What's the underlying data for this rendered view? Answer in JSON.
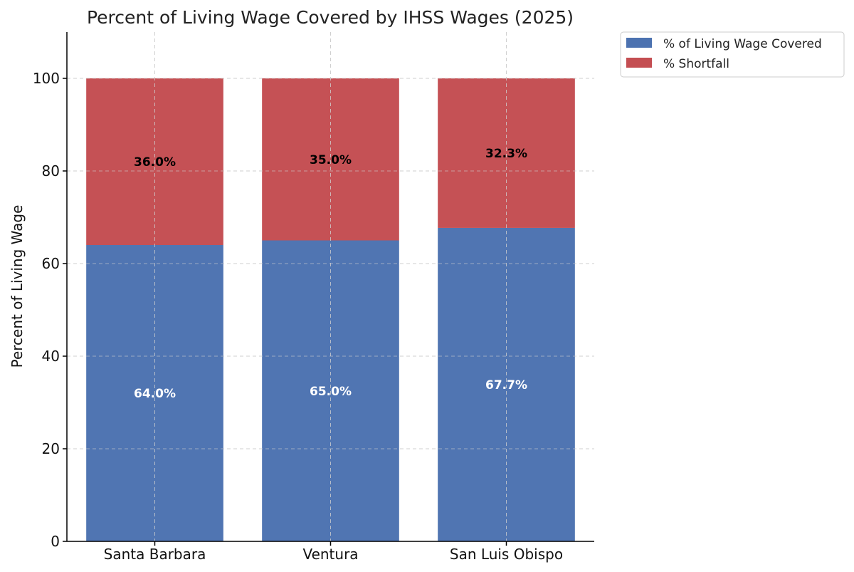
{
  "chart_data": {
    "type": "bar",
    "stacked": true,
    "title": "Percent of Living Wage Covered by IHSS Wages (2025)",
    "xlabel": "",
    "ylabel": "Percent of Living Wage",
    "ylim": [
      0,
      110
    ],
    "yticks": [
      0,
      20,
      40,
      60,
      80,
      100
    ],
    "grid": true,
    "legend_position": "outside-top-right",
    "categories": [
      "Santa Barbara",
      "Ventura",
      "San Luis Obispo"
    ],
    "series": [
      {
        "name": "% of Living Wage Covered",
        "color": "#4c72b0",
        "label_color": "#ffffff",
        "values": [
          64.0,
          65.0,
          67.7
        ],
        "labels": [
          "64.0%",
          "65.0%",
          "67.7%"
        ]
      },
      {
        "name": "% Shortfall",
        "color": "#c44e52",
        "label_color": "#000000",
        "values": [
          36.0,
          35.0,
          32.3
        ],
        "labels": [
          "36.0%",
          "35.0%",
          "32.3%"
        ]
      }
    ]
  }
}
